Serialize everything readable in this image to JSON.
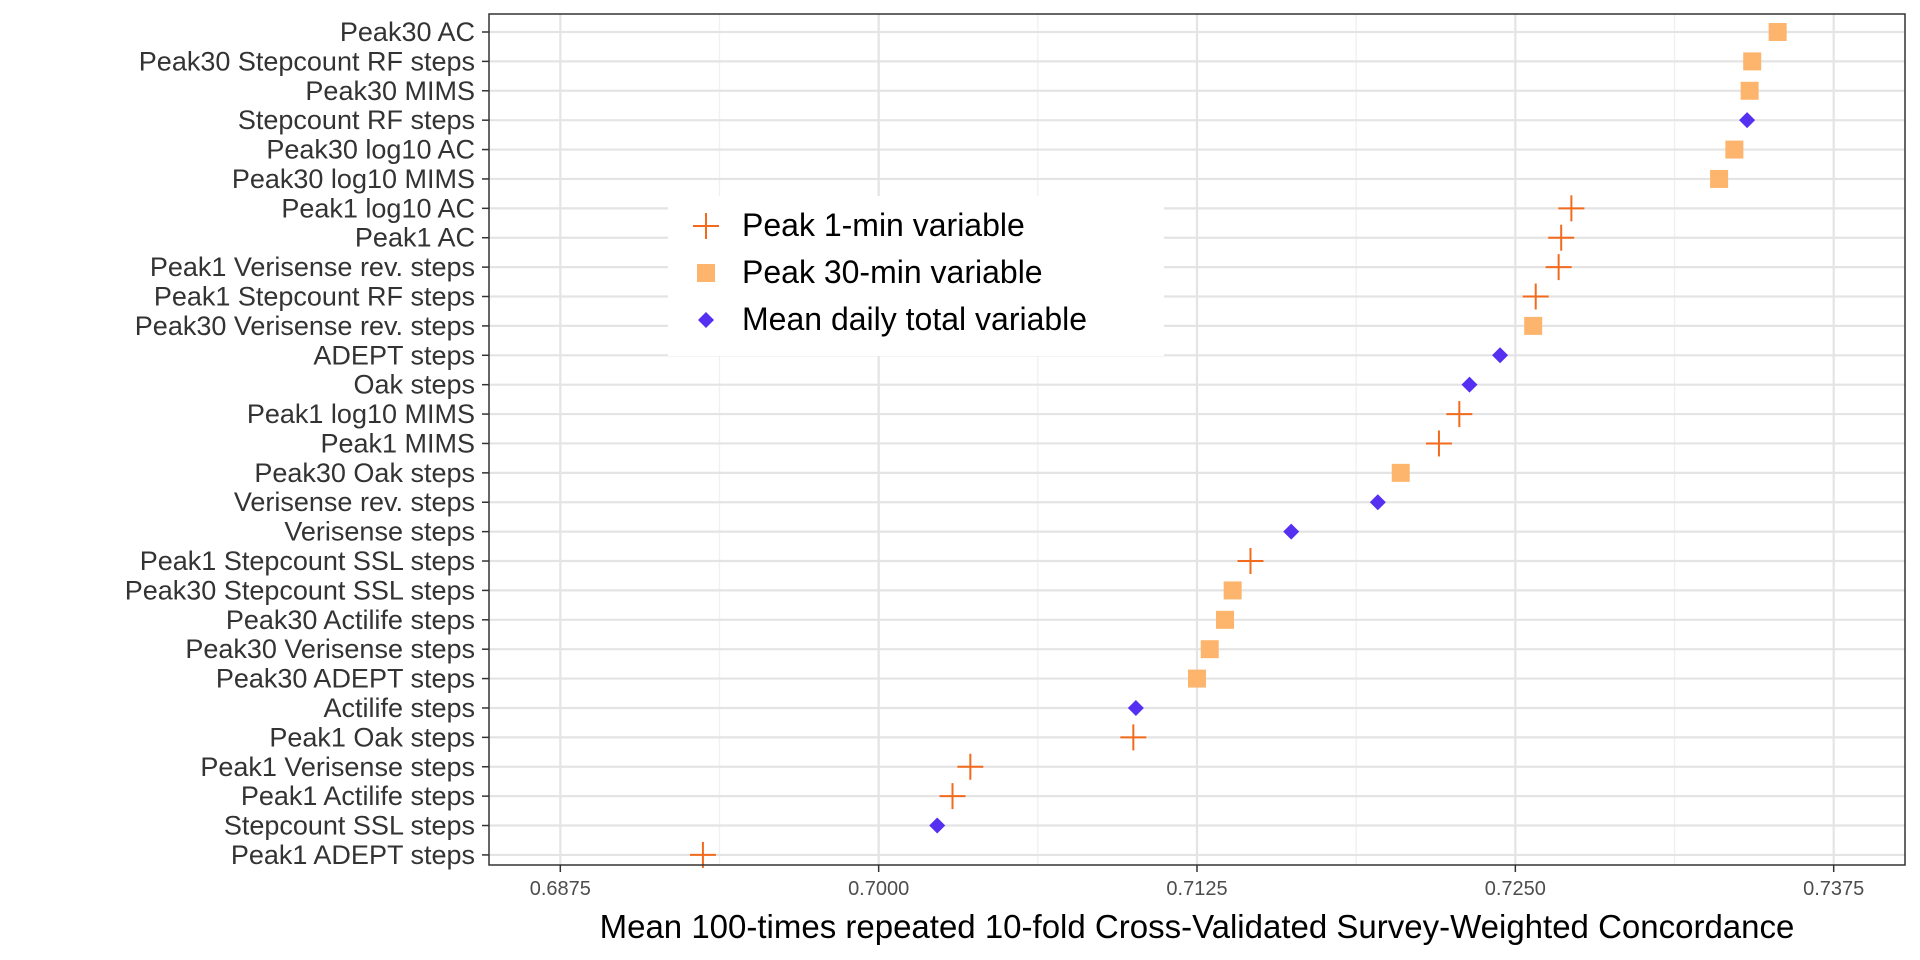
{
  "chart_data": {
    "type": "scatter",
    "title": "",
    "xlabel": "Mean 100-times repeated 10-fold Cross-Validated Survey-Weighted Concordance",
    "ylabel": "",
    "xlim": [
      0.6847,
      0.7403
    ],
    "xticks": [
      0.6875,
      0.7,
      0.7125,
      0.725,
      0.7375
    ],
    "xtick_labels": [
      "0.6875",
      "0.7000",
      "0.7125",
      "0.7250",
      "0.7375"
    ],
    "grid": true,
    "legend_position": "upper-left inside plot",
    "series": [
      {
        "name": "Peak 1-min variable",
        "marker": "plus",
        "color": "#f26b1d"
      },
      {
        "name": "Peak 30-min variable",
        "marker": "square",
        "color": "#fdb56e"
      },
      {
        "name": "Mean daily total variable",
        "marker": "diamond",
        "color": "#5530f0"
      }
    ],
    "points": [
      {
        "label": "Peak30 AC",
        "value": 0.7353,
        "series": 1
      },
      {
        "label": "Peak30 Stepcount RF steps",
        "value": 0.7343,
        "series": 1
      },
      {
        "label": "Peak30 MIMS",
        "value": 0.7342,
        "series": 1
      },
      {
        "label": "Stepcount RF steps",
        "value": 0.7341,
        "series": 2
      },
      {
        "label": "Peak30 log10 AC",
        "value": 0.7336,
        "series": 1
      },
      {
        "label": "Peak30 log10 MIMS",
        "value": 0.733,
        "series": 1
      },
      {
        "label": "Peak1 log10 AC",
        "value": 0.7272,
        "series": 0
      },
      {
        "label": "Peak1 AC",
        "value": 0.7268,
        "series": 0
      },
      {
        "label": "Peak1 Verisense rev. steps",
        "value": 0.7267,
        "series": 0
      },
      {
        "label": "Peak1 Stepcount RF steps",
        "value": 0.7258,
        "series": 0
      },
      {
        "label": "Peak30 Verisense rev. steps",
        "value": 0.7257,
        "series": 1
      },
      {
        "label": "ADEPT steps",
        "value": 0.7244,
        "series": 2
      },
      {
        "label": "Oak steps",
        "value": 0.7232,
        "series": 2
      },
      {
        "label": "Peak1 log10 MIMS",
        "value": 0.7228,
        "series": 0
      },
      {
        "label": "Peak1 MIMS",
        "value": 0.722,
        "series": 0
      },
      {
        "label": "Peak30 Oak steps",
        "value": 0.7205,
        "series": 1
      },
      {
        "label": "Verisense rev. steps",
        "value": 0.7196,
        "series": 2
      },
      {
        "label": "Verisense steps",
        "value": 0.7162,
        "series": 2
      },
      {
        "label": "Peak1 Stepcount SSL steps",
        "value": 0.7146,
        "series": 0
      },
      {
        "label": "Peak30 Stepcount SSL steps",
        "value": 0.7139,
        "series": 1
      },
      {
        "label": "Peak30 Actilife steps",
        "value": 0.7136,
        "series": 1
      },
      {
        "label": "Peak30 Verisense steps",
        "value": 0.713,
        "series": 1
      },
      {
        "label": "Peak30 ADEPT steps",
        "value": 0.7125,
        "series": 1
      },
      {
        "label": "Actilife steps",
        "value": 0.7101,
        "series": 2
      },
      {
        "label": "Peak1 Oak steps",
        "value": 0.71,
        "series": 0
      },
      {
        "label": "Peak1 Verisense steps",
        "value": 0.7036,
        "series": 0
      },
      {
        "label": "Peak1 Actilife steps",
        "value": 0.7029,
        "series": 0
      },
      {
        "label": "Stepcount SSL steps",
        "value": 0.7023,
        "series": 2
      },
      {
        "label": "Peak1 ADEPT steps",
        "value": 0.6931,
        "series": 0
      }
    ]
  }
}
